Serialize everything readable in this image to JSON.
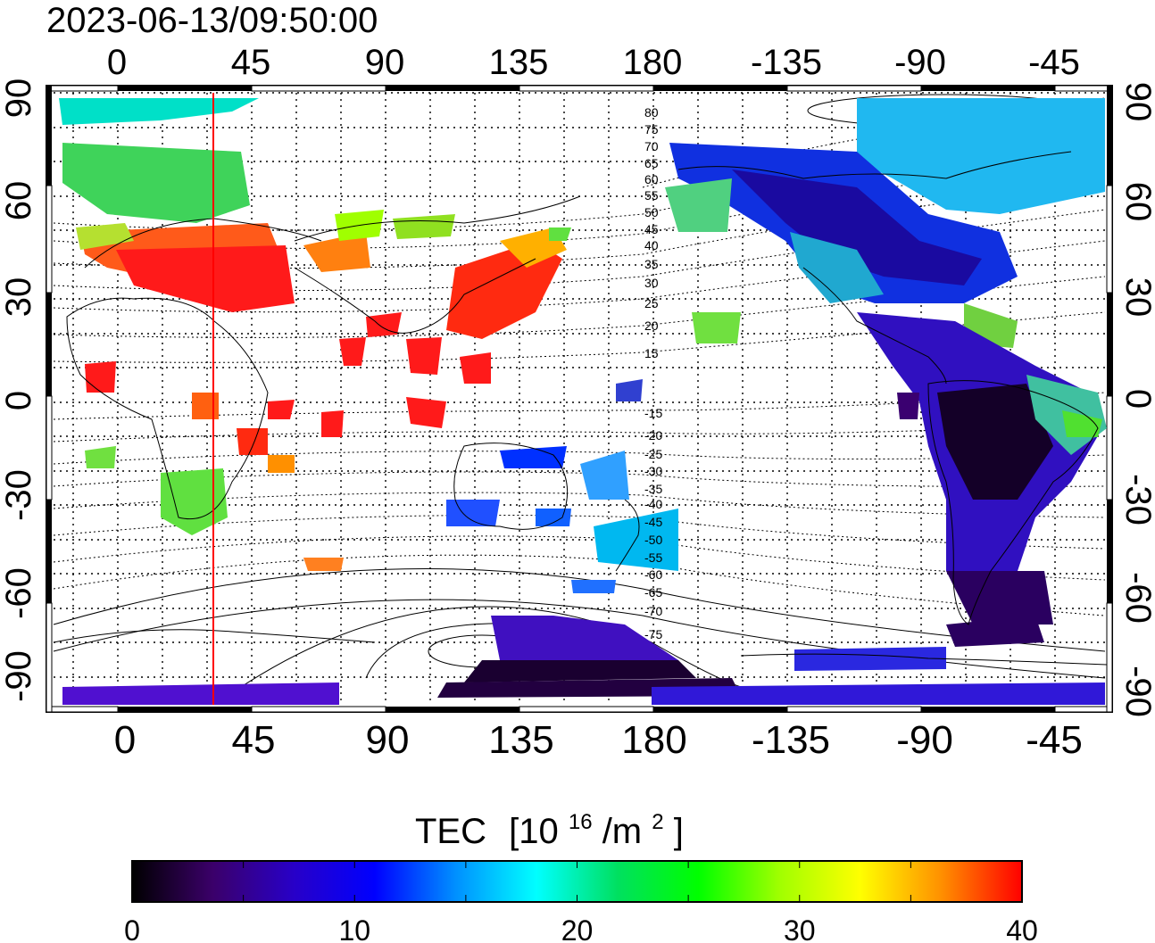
{
  "title": "2023-06-13/09:50:00",
  "map": {
    "lon_range": [
      -20,
      340
    ],
    "lat_range": [
      -90,
      90
    ],
    "top_lon_labels": [
      "0",
      "45",
      "90",
      "135",
      "180",
      "-135",
      "-90",
      "-45"
    ],
    "bottom_lon_labels": [
      "0",
      "45",
      "90",
      "135",
      "180",
      "-135",
      "-90",
      "-45"
    ],
    "lat_labels": [
      "90",
      "60",
      "30",
      "0",
      "-30",
      "-60",
      "-90"
    ],
    "terminator_lon": 32,
    "terminator_color": "#ff0000",
    "contour_labels": [
      "80",
      "75",
      "70",
      "65",
      "60",
      "55",
      "50",
      "45",
      "40",
      "35",
      "30",
      "25",
      "20",
      "15",
      "-15",
      "-20",
      "-25",
      "-30",
      "-35",
      "-40",
      "-45",
      "-50",
      "-55",
      "-60",
      "-65",
      "-70",
      "-75"
    ]
  },
  "colorbar": {
    "label_main": "TEC",
    "label_unit_prefix": "[10",
    "label_unit_exp": "16",
    "label_unit_mid": "/m",
    "label_unit_exp2": "2",
    "label_unit_suffix": "]",
    "min": 0,
    "max": 40,
    "tick_labels": [
      "0",
      "10",
      "20",
      "30",
      "40"
    ],
    "colors": [
      "#000000",
      "#3b006a",
      "#2800c8",
      "#0000ff",
      "#0090ff",
      "#00ffff",
      "#00e060",
      "#00ff00",
      "#a0ff00",
      "#ffff00",
      "#ff9000",
      "#ff0000"
    ]
  }
}
